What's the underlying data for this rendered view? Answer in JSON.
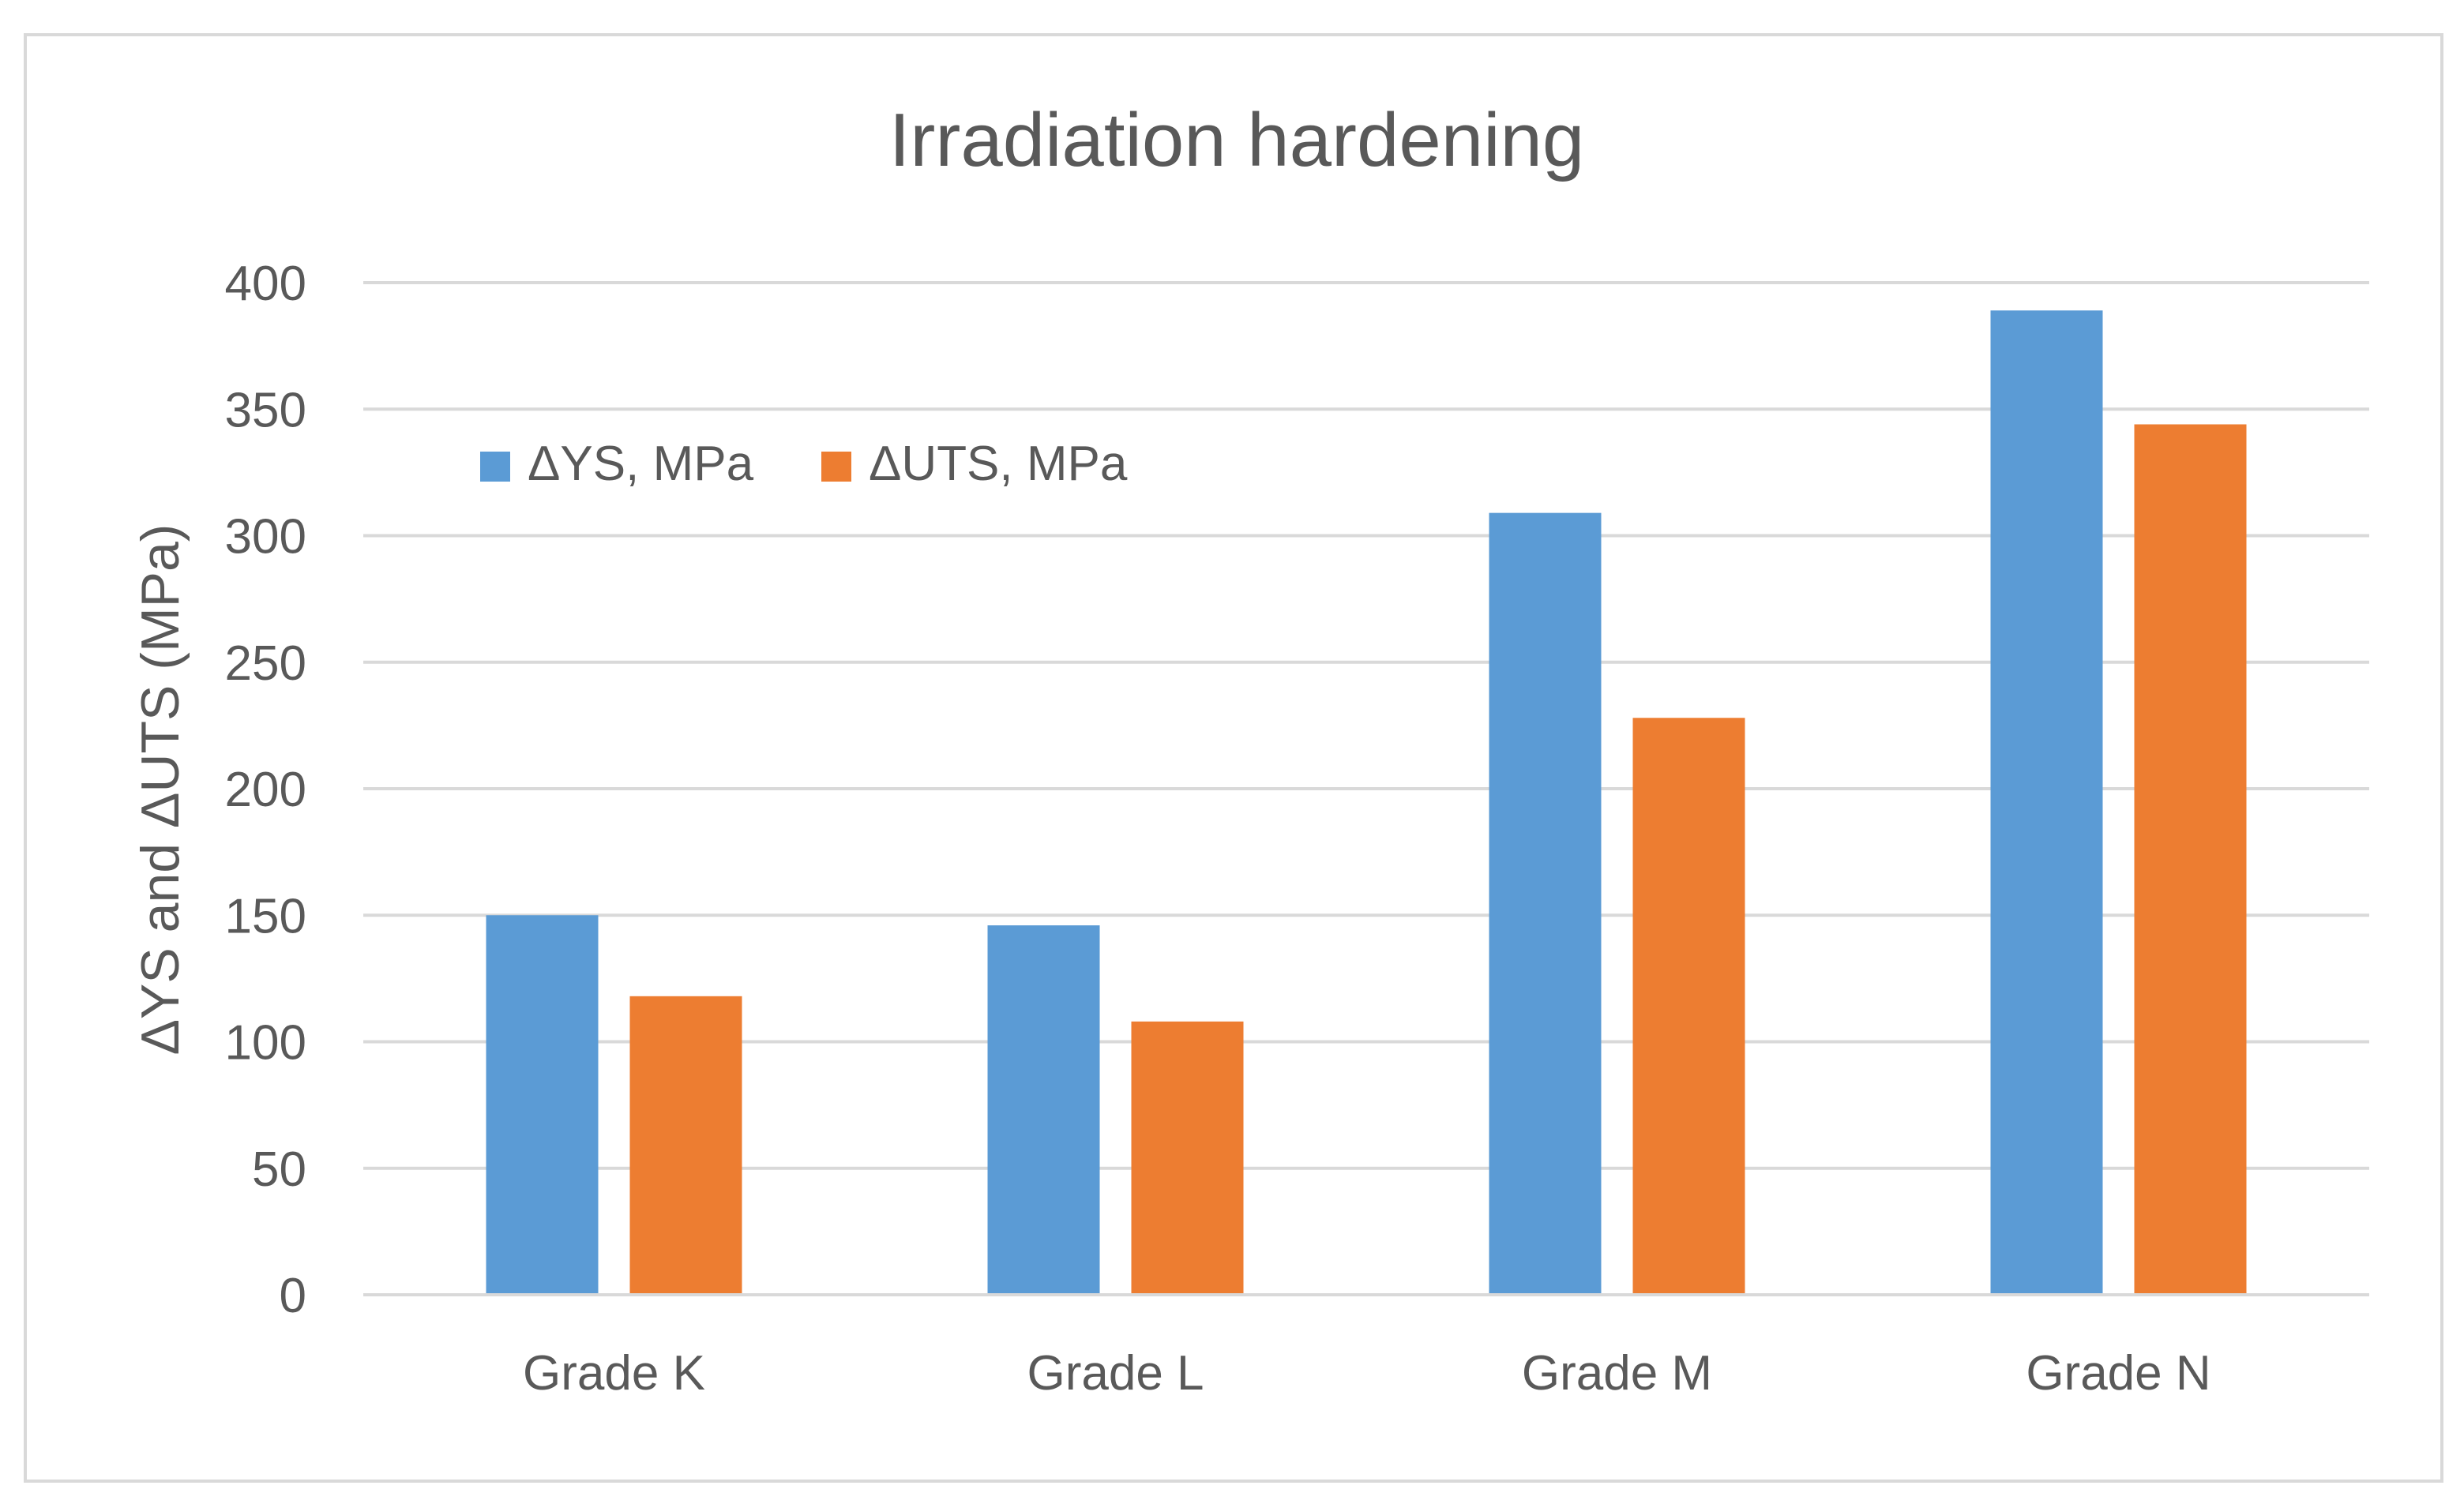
{
  "chart_data": {
    "type": "bar",
    "title": "Irradiation hardening",
    "xlabel": "",
    "ylabel": "ΔYS and ΔUTS (MPa)",
    "categories": [
      "Grade K",
      "Grade L",
      "Grade M",
      "Grade N"
    ],
    "series": [
      {
        "name": "ΔYS, MPa",
        "values": [
          150,
          146,
          309,
          389
        ],
        "color": "#5B9BD5"
      },
      {
        "name": "ΔUTS, MPa",
        "values": [
          118,
          108,
          228,
          344
        ],
        "color": "#ED7D31"
      }
    ],
    "ylim": [
      0,
      400
    ],
    "yticks": [
      0,
      50,
      100,
      150,
      200,
      250,
      300,
      350,
      400
    ],
    "grid": true,
    "legend_position": "top-left"
  },
  "colors": {
    "gridline": "#D9D9D9",
    "frame": "#D9D9D9",
    "text": "#595959"
  }
}
